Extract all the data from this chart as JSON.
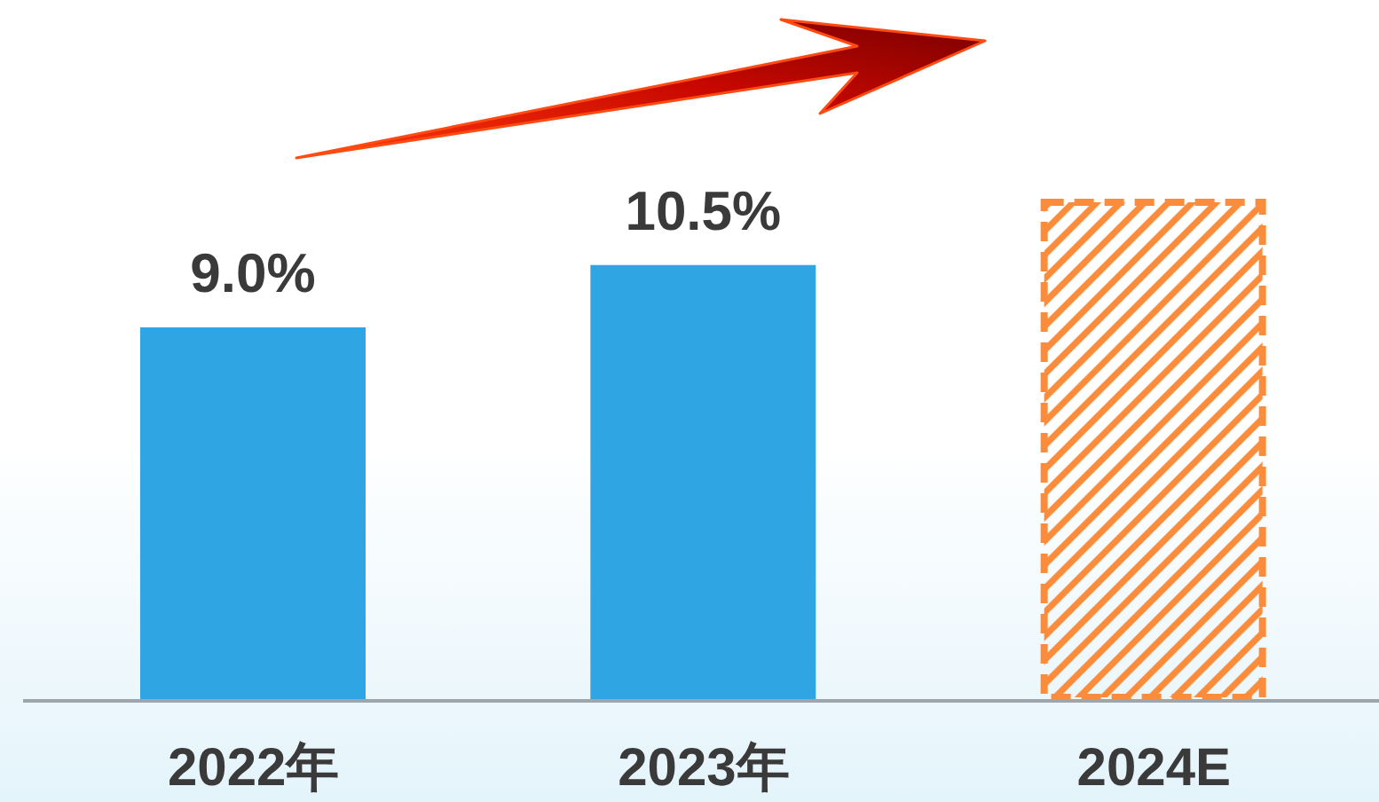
{
  "chart_data": {
    "type": "bar",
    "categories": [
      "2022年",
      "2023年",
      "2024E"
    ],
    "stacked": true,
    "series": [
      {
        "color": "#2fa6e3",
        "values": [
          9.0,
          10.5,
          null
        ],
        "value_labels": [
          "9.0%",
          "10.5%",
          null
        ]
      },
      {
        "color": "#fb8c3c",
        "values": [
          null,
          null,
          12.1
        ],
        "line_style": "dashed"
      }
    ]
  }
}
